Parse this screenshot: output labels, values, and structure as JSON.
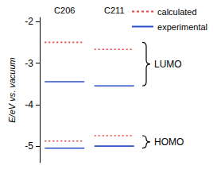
{
  "chart_data": {
    "type": "energy_levels",
    "y_label": "E/eV vs. vacuum",
    "categories": [
      "C206",
      "C211"
    ],
    "levels": [
      "LUMO",
      "HOMO"
    ],
    "series": [
      {
        "name": "calculated",
        "color": "#e8413c",
        "line_style": "dotted",
        "values": {
          "LUMO": [
            -2.5,
            -2.67
          ],
          "HOMO": [
            -4.88,
            -4.75
          ]
        }
      },
      {
        "name": "experimental",
        "color": "#2b4fc7",
        "line_style": "solid",
        "values": {
          "LUMO": [
            -3.45,
            -3.55
          ],
          "HOMO": [
            -5.05,
            -5.0
          ]
        }
      }
    ],
    "ylim": [
      -5.4,
      -1.9
    ],
    "yticks": [
      -5,
      -4,
      -3,
      -2
    ],
    "grid": false,
    "legend": "top-right"
  }
}
